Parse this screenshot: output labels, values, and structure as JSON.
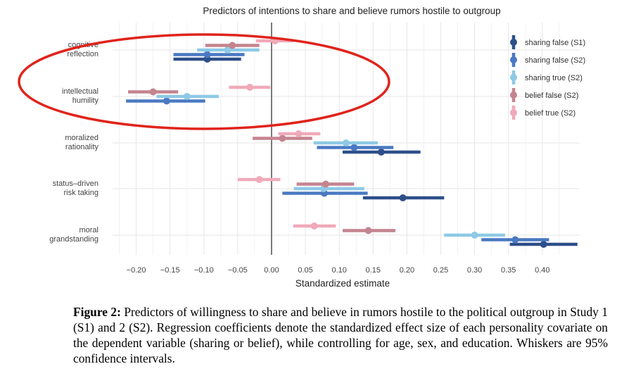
{
  "chart_data": {
    "type": "forest",
    "title": "Predictors of intentions to share and believe rumors hostile to outgroup",
    "xlabel": "Standardized estimate",
    "xlim": [
      -0.235,
      0.455
    ],
    "xticks": [
      "-0.20",
      "-0.15",
      "-0.10",
      "-0.05",
      "0.00",
      "0.05",
      "0.10",
      "0.15",
      "0.20",
      "0.25",
      "0.30",
      "0.35",
      "0.40"
    ],
    "xtick_values": [
      -0.2,
      -0.15,
      -0.1,
      -0.05,
      0.0,
      0.05,
      0.1,
      0.15,
      0.2,
      0.25,
      0.3,
      0.35,
      0.4
    ],
    "grid": true,
    "legend_position": "right",
    "categories": [
      [
        "cognitive",
        "reflection"
      ],
      [
        "intellectual",
        "humility"
      ],
      [
        "moralized",
        "rationality"
      ],
      [
        "status–driven",
        "risk taking"
      ],
      [
        "moral",
        "grandstanding"
      ]
    ],
    "series": [
      {
        "name": "sharing false (S1)",
        "color": "#2d4f8a",
        "estimates": [
          -0.095,
          null,
          0.162,
          0.194,
          0.402
        ],
        "lower": [
          -0.145,
          null,
          0.105,
          0.135,
          0.352
        ],
        "upper": [
          -0.045,
          null,
          0.22,
          0.255,
          0.452
        ]
      },
      {
        "name": "sharing false (S2)",
        "color": "#4a79c2",
        "estimates": [
          -0.095,
          -0.155,
          0.122,
          0.078,
          0.36
        ],
        "lower": [
          -0.145,
          -0.215,
          0.067,
          0.016,
          0.31
        ],
        "upper": [
          -0.04,
          -0.098,
          0.18,
          0.142,
          0.41
        ]
      },
      {
        "name": "sharing true (S2)",
        "color": "#8ec9e6",
        "estimates": [
          -0.065,
          -0.125,
          0.11,
          0.077,
          0.3
        ],
        "lower": [
          -0.11,
          -0.17,
          0.062,
          0.033,
          0.255
        ],
        "upper": [
          -0.018,
          -0.078,
          0.157,
          0.137,
          0.345
        ]
      },
      {
        "name": "belief false (S2)",
        "color": "#c4848f",
        "estimates": [
          -0.058,
          -0.175,
          0.016,
          0.08,
          0.143
        ],
        "lower": [
          -0.098,
          -0.212,
          -0.028,
          0.037,
          0.105
        ],
        "upper": [
          -0.018,
          -0.138,
          0.06,
          0.122,
          0.183
        ]
      },
      {
        "name": "belief true (S2)",
        "color": "#f0a9b9",
        "estimates": [
          0.005,
          -0.032,
          0.04,
          -0.018,
          0.063
        ],
        "lower": [
          -0.023,
          -0.063,
          0.01,
          -0.05,
          0.032
        ],
        "upper": [
          0.033,
          -0.002,
          0.072,
          0.013,
          0.095
        ]
      }
    ]
  },
  "caption": {
    "label": "Figure 2:",
    "text": " Predictors of willingness to share and believe in rumors hostile to the political outgroup in Study 1 (S1) and 2 (S2). Regression coefficients denote the standardized effect size of each personality covariate on the dependent variable (sharing or belief), while controlling for age, sex, and education. Whiskers are 95% confidence intervals."
  },
  "annotation": {
    "shape": "ellipse",
    "color": "#e0241b"
  }
}
